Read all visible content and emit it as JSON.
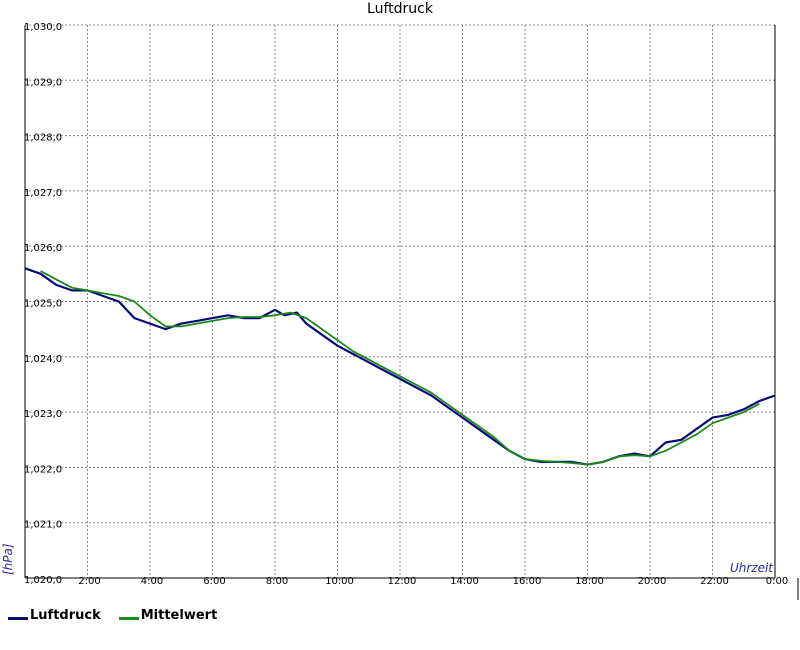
{
  "chart_data": {
    "type": "line",
    "title": "Luftdruck",
    "ylabel": "[hPa]",
    "xlabel": "Uhrzeit",
    "ylim": [
      1020.0,
      1030.0
    ],
    "xlim": [
      0,
      24
    ],
    "grid": true,
    "legend_position": "bottom-left",
    "y_ticks": [
      "1,020,0",
      "1,021,0",
      "1,022,0",
      "1,023,0",
      "1,024,0",
      "1,025,0",
      "1,026,0",
      "1,027,0",
      "1,028,0",
      "1,029,0",
      "1,030,0"
    ],
    "x_ticks": [
      "2:00",
      "4:00",
      "6:00",
      "8:00",
      "10:00",
      "12:00",
      "14:00",
      "16:00",
      "18:00",
      "20:00",
      "22:00",
      "0:00"
    ],
    "series": [
      {
        "name": "Luftdruck",
        "color": "#0a0a78",
        "x": [
          0,
          0.5,
          1.0,
          1.5,
          2.0,
          2.5,
          3.0,
          3.5,
          4.0,
          4.5,
          5.0,
          5.5,
          6.0,
          6.5,
          7.0,
          7.5,
          8.0,
          8.3,
          8.7,
          9.0,
          9.5,
          10.0,
          10.5,
          11.0,
          11.5,
          12.0,
          12.5,
          13.0,
          13.5,
          14.0,
          14.5,
          15.0,
          15.5,
          16.0,
          16.5,
          17.0,
          17.5,
          18.0,
          18.5,
          19.0,
          19.5,
          20.0,
          20.5,
          21.0,
          21.5,
          22.0,
          22.5,
          23.0,
          23.5,
          24.0
        ],
        "values": [
          1025.6,
          1025.5,
          1025.3,
          1025.2,
          1025.2,
          1025.1,
          1025.0,
          1024.7,
          1024.6,
          1024.5,
          1024.6,
          1024.65,
          1024.7,
          1024.75,
          1024.7,
          1024.7,
          1024.85,
          1024.75,
          1024.8,
          1024.6,
          1024.4,
          1024.2,
          1024.05,
          1023.9,
          1023.75,
          1023.6,
          1023.45,
          1023.3,
          1023.1,
          1022.9,
          1022.7,
          1022.5,
          1022.3,
          1022.15,
          1022.1,
          1022.1,
          1022.1,
          1022.05,
          1022.1,
          1022.2,
          1022.25,
          1022.2,
          1022.45,
          1022.5,
          1022.7,
          1022.9,
          1022.95,
          1023.05,
          1023.2,
          1023.3
        ]
      },
      {
        "name": "Mittelwert",
        "color": "#1a8a1a",
        "x": [
          0.5,
          1.0,
          1.5,
          2.0,
          2.5,
          3.0,
          3.5,
          4.0,
          4.5,
          5.0,
          5.5,
          6.0,
          6.5,
          7.0,
          7.5,
          8.0,
          8.5,
          9.0,
          9.5,
          10.0,
          10.5,
          11.0,
          11.5,
          12.0,
          12.5,
          13.0,
          13.5,
          14.0,
          14.5,
          15.0,
          15.5,
          16.0,
          16.5,
          17.0,
          17.5,
          18.0,
          18.5,
          19.0,
          19.5,
          20.0,
          20.5,
          21.0,
          21.5,
          22.0,
          22.5,
          23.0,
          23.5
        ],
        "values": [
          1025.55,
          1025.4,
          1025.25,
          1025.2,
          1025.15,
          1025.1,
          1025.0,
          1024.75,
          1024.55,
          1024.55,
          1024.6,
          1024.65,
          1024.7,
          1024.72,
          1024.72,
          1024.75,
          1024.8,
          1024.7,
          1024.5,
          1024.3,
          1024.1,
          1023.95,
          1023.8,
          1023.65,
          1023.5,
          1023.35,
          1023.15,
          1022.95,
          1022.75,
          1022.55,
          1022.3,
          1022.15,
          1022.12,
          1022.1,
          1022.08,
          1022.05,
          1022.1,
          1022.2,
          1022.22,
          1022.2,
          1022.3,
          1022.45,
          1022.6,
          1022.8,
          1022.9,
          1023.0,
          1023.15
        ]
      }
    ]
  }
}
